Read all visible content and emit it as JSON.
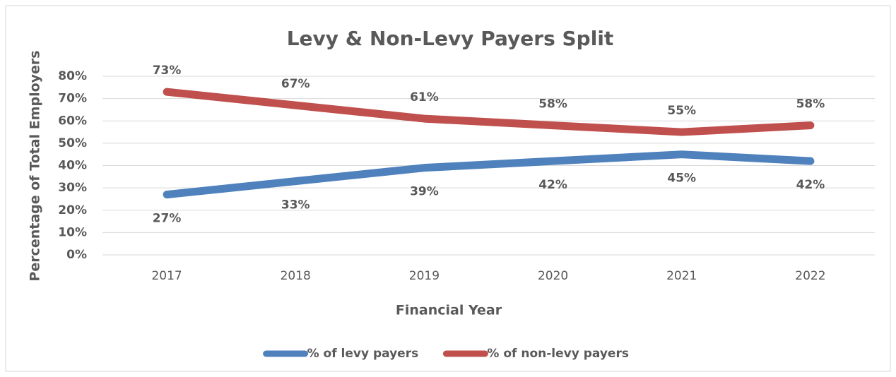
{
  "chart_data": {
    "type": "line",
    "title": "Levy & Non-Levy Payers Split",
    "x_label": "Financial Year",
    "y_label": "Percentage of Total  Employers",
    "categories": [
      "2017",
      "2018",
      "2019",
      "2020",
      "2021",
      "2022"
    ],
    "series": [
      {
        "name": "% of levy payers",
        "color": "#4f81bd",
        "values": [
          27,
          33,
          39,
          42,
          45,
          42
        ],
        "value_labels": [
          "27%",
          "33%",
          "39%",
          "42%",
          "45%",
          "42%"
        ]
      },
      {
        "name": "% of non-levy payers",
        "color": "#c0504d",
        "values": [
          73,
          67,
          61,
          58,
          55,
          58
        ],
        "value_labels": [
          "73%",
          "67%",
          "61%",
          "58%",
          "55%",
          "58%"
        ]
      }
    ],
    "ylim": [
      0,
      80
    ],
    "yticks": [
      {
        "value": 0,
        "label": "0%"
      },
      {
        "value": 10,
        "label": "10%"
      },
      {
        "value": 20,
        "label": "20%"
      },
      {
        "value": 30,
        "label": "30%"
      },
      {
        "value": 40,
        "label": "40%"
      },
      {
        "value": 50,
        "label": "50%"
      },
      {
        "value": 60,
        "label": "60%"
      },
      {
        "value": 70,
        "label": "70%"
      },
      {
        "value": 80,
        "label": "80%"
      }
    ],
    "grid": true,
    "legend": "bottom"
  }
}
